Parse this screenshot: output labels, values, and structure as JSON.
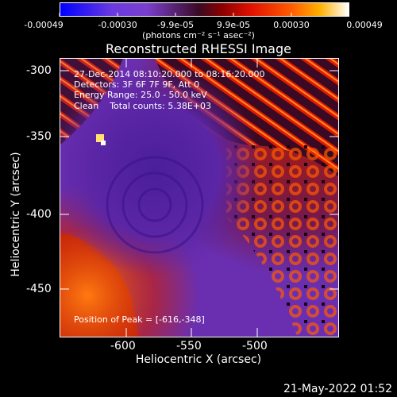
{
  "colorbar": {
    "tick_labels": [
      "-0.00049",
      "-0.00030",
      "-9.9e-05",
      "9.9e-05",
      "0.00030",
      "0.00049"
    ],
    "units_label": "(photons cm⁻² s⁻¹ asec⁻²)",
    "colors": [
      "#0000ff",
      "#7b3fd8",
      "#3a0a24",
      "#b00000",
      "#ff4000",
      "#ffb000",
      "#ffffff"
    ]
  },
  "title": "Reconstructed RHESSI Image",
  "info_lines": [
    "27-Dec-2014 08:10:20.000 to 08:16:20.000",
    "Detectors: 3F 6F 7F 9F, Att 0",
    "Energy Range: 25.0 - 50.0 keV",
    "Clean    Total counts: 5.38E+03"
  ],
  "peak_text": "Position of Peak = [-616,-348]",
  "axes": {
    "xlabel": "Heliocentric X (arcsec)",
    "ylabel": "Heliocentric Y (arcsec)",
    "x_ticks": [
      "-600",
      "-550",
      "-500"
    ],
    "y_ticks": [
      "-300",
      "-350",
      "-400",
      "-450"
    ]
  },
  "timestamp": "21-May-2022 01:52"
}
